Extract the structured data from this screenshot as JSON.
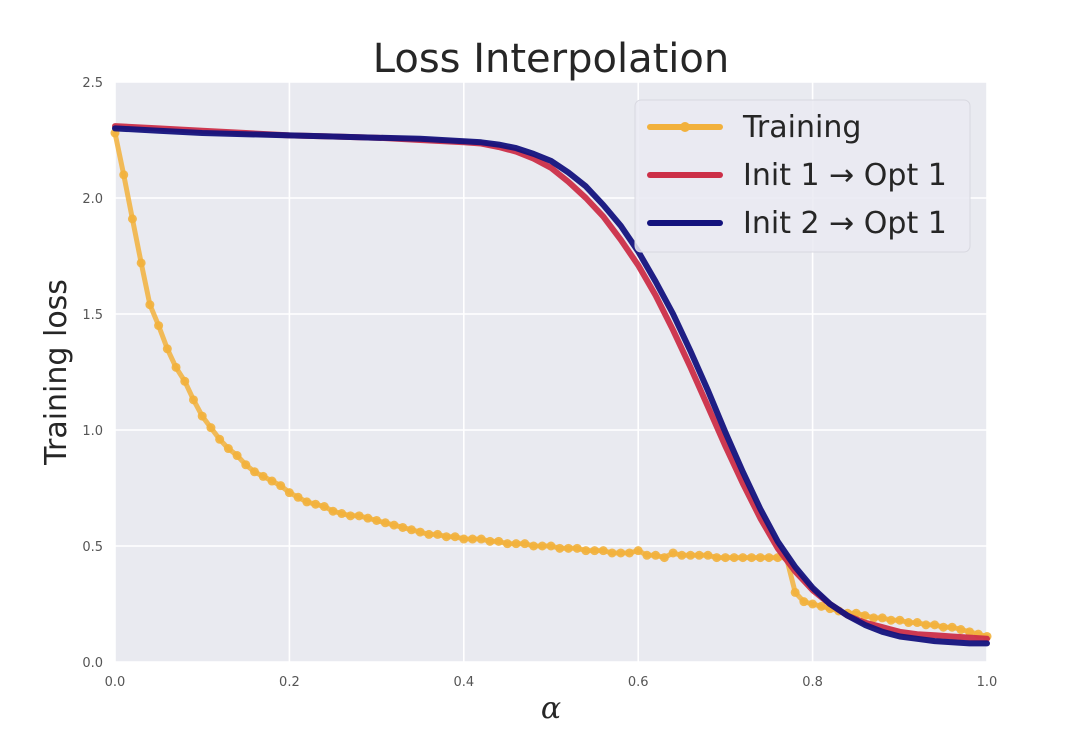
{
  "chart_data": {
    "type": "line",
    "title": "Loss Interpolation",
    "xlabel": "α",
    "ylabel": "Training loss",
    "xlim": [
      0.0,
      1.0
    ],
    "ylim": [
      0.0,
      2.5
    ],
    "xticks": [
      "0.0",
      "0.2",
      "0.4",
      "0.6",
      "0.8",
      "1.0"
    ],
    "yticks": [
      "0.0",
      "0.5",
      "1.0",
      "1.5",
      "2.0",
      "2.5"
    ],
    "grid": true,
    "legend_position": "top-right",
    "background_color": "#e9eaf0",
    "series": [
      {
        "name": "Training",
        "color": "#f2b13c",
        "marker": "circle",
        "x": [
          0.0,
          0.01,
          0.02,
          0.03,
          0.04,
          0.05,
          0.06,
          0.07,
          0.08,
          0.09,
          0.1,
          0.11,
          0.12,
          0.13,
          0.14,
          0.15,
          0.16,
          0.17,
          0.18,
          0.19,
          0.2,
          0.21,
          0.22,
          0.23,
          0.24,
          0.25,
          0.26,
          0.27,
          0.28,
          0.29,
          0.3,
          0.31,
          0.32,
          0.33,
          0.34,
          0.35,
          0.36,
          0.37,
          0.38,
          0.39,
          0.4,
          0.41,
          0.42,
          0.43,
          0.44,
          0.45,
          0.46,
          0.47,
          0.48,
          0.49,
          0.5,
          0.51,
          0.52,
          0.53,
          0.54,
          0.55,
          0.56,
          0.57,
          0.58,
          0.59,
          0.6,
          0.61,
          0.62,
          0.63,
          0.64,
          0.65,
          0.66,
          0.67,
          0.68,
          0.69,
          0.7,
          0.71,
          0.72,
          0.73,
          0.74,
          0.75,
          0.76,
          0.77,
          0.78,
          0.79,
          0.8,
          0.81,
          0.82,
          0.83,
          0.84,
          0.85,
          0.86,
          0.87,
          0.88,
          0.89,
          0.9,
          0.91,
          0.92,
          0.93,
          0.94,
          0.95,
          0.96,
          0.97,
          0.98,
          0.99,
          1.0
        ],
        "values": [
          2.28,
          2.1,
          1.91,
          1.72,
          1.54,
          1.45,
          1.35,
          1.27,
          1.21,
          1.13,
          1.06,
          1.01,
          0.96,
          0.92,
          0.89,
          0.85,
          0.82,
          0.8,
          0.78,
          0.76,
          0.73,
          0.71,
          0.69,
          0.68,
          0.67,
          0.65,
          0.64,
          0.63,
          0.63,
          0.62,
          0.61,
          0.6,
          0.59,
          0.58,
          0.57,
          0.56,
          0.55,
          0.55,
          0.54,
          0.54,
          0.53,
          0.53,
          0.53,
          0.52,
          0.52,
          0.51,
          0.51,
          0.51,
          0.5,
          0.5,
          0.5,
          0.49,
          0.49,
          0.49,
          0.48,
          0.48,
          0.48,
          0.47,
          0.47,
          0.47,
          0.48,
          0.46,
          0.46,
          0.45,
          0.47,
          0.46,
          0.46,
          0.46,
          0.46,
          0.45,
          0.45,
          0.45,
          0.45,
          0.45,
          0.45,
          0.45,
          0.45,
          0.45,
          0.3,
          0.26,
          0.25,
          0.24,
          0.23,
          0.22,
          0.21,
          0.21,
          0.2,
          0.19,
          0.19,
          0.18,
          0.18,
          0.17,
          0.17,
          0.16,
          0.16,
          0.15,
          0.15,
          0.14,
          0.13,
          0.12,
          0.11
        ]
      },
      {
        "name": "Init 1 → Opt 1",
        "color": "#cc2f48",
        "x": [
          0.0,
          0.05,
          0.1,
          0.15,
          0.2,
          0.25,
          0.3,
          0.35,
          0.4,
          0.42,
          0.44,
          0.46,
          0.48,
          0.5,
          0.52,
          0.54,
          0.56,
          0.58,
          0.6,
          0.62,
          0.64,
          0.66,
          0.68,
          0.7,
          0.72,
          0.74,
          0.76,
          0.78,
          0.8,
          0.82,
          0.84,
          0.86,
          0.88,
          0.9,
          0.92,
          0.94,
          0.96,
          0.98,
          1.0
        ],
        "values": [
          2.31,
          2.3,
          2.29,
          2.28,
          2.27,
          2.265,
          2.26,
          2.25,
          2.24,
          2.235,
          2.22,
          2.2,
          2.17,
          2.13,
          2.07,
          2.0,
          1.92,
          1.82,
          1.71,
          1.58,
          1.43,
          1.27,
          1.1,
          0.93,
          0.77,
          0.62,
          0.49,
          0.39,
          0.31,
          0.25,
          0.2,
          0.17,
          0.15,
          0.13,
          0.12,
          0.115,
          0.11,
          0.105,
          0.1
        ]
      },
      {
        "name": "Init 2 → Opt 1",
        "color": "#14137d",
        "x": [
          0.0,
          0.05,
          0.1,
          0.15,
          0.2,
          0.25,
          0.3,
          0.35,
          0.4,
          0.42,
          0.44,
          0.46,
          0.48,
          0.5,
          0.52,
          0.54,
          0.56,
          0.58,
          0.6,
          0.62,
          0.64,
          0.66,
          0.68,
          0.7,
          0.72,
          0.74,
          0.76,
          0.78,
          0.8,
          0.82,
          0.84,
          0.86,
          0.88,
          0.9,
          0.92,
          0.94,
          0.96,
          0.98,
          1.0
        ],
        "values": [
          2.3,
          2.29,
          2.28,
          2.275,
          2.27,
          2.265,
          2.26,
          2.255,
          2.245,
          2.24,
          2.23,
          2.215,
          2.19,
          2.16,
          2.11,
          2.05,
          1.97,
          1.88,
          1.77,
          1.64,
          1.5,
          1.34,
          1.17,
          0.99,
          0.82,
          0.66,
          0.52,
          0.41,
          0.32,
          0.25,
          0.2,
          0.16,
          0.13,
          0.11,
          0.1,
          0.09,
          0.085,
          0.08,
          0.08
        ]
      }
    ]
  }
}
